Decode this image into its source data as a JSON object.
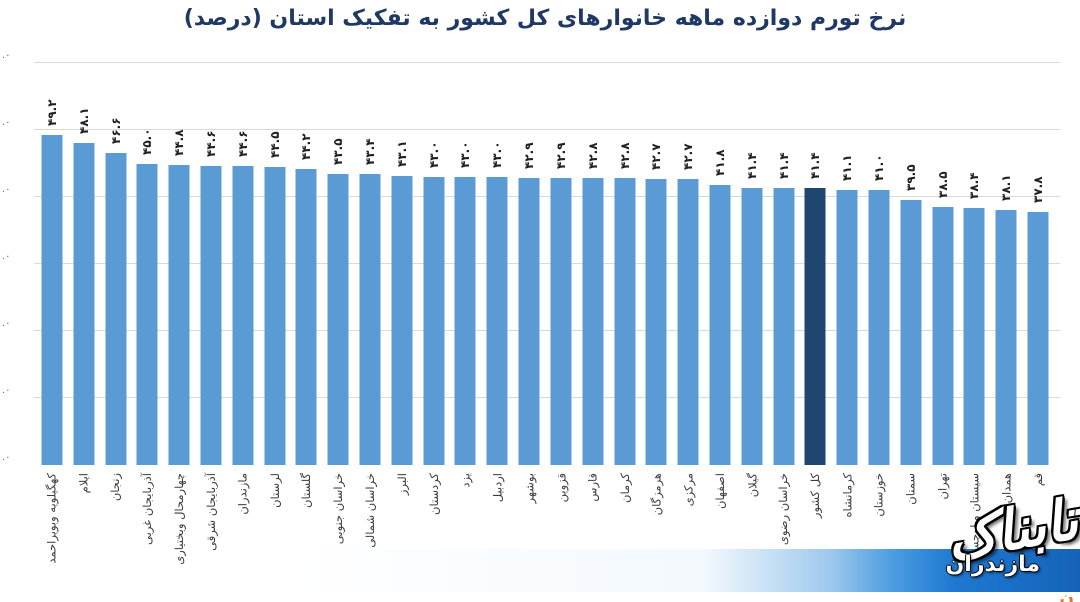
{
  "colors": {
    "background": "#FFFFFF",
    "title": "#1F3864",
    "gridline": "#D9D9D9",
    "value_label": "#1F1F1F",
    "category_label": "#3D3D3D",
    "bar_default": "#5B9BD5",
    "bar_highlight": "#1F4571",
    "watermark_band_blue": "#1E79D2",
    "watermark_band_dark_blue": "#1563B8",
    "watermark_text": "#FFFFFF",
    "corner_fragment": "#E0762B"
  },
  "y_axis": {
    "tick_fragments": [
      ".۰",
      ".۰",
      ".۰",
      ".۰",
      ".۰",
      ".۰",
      ".۰"
    ]
  },
  "watermark": {
    "brand": "تابناک",
    "region": "مازندران",
    "corner_fragment": "ن"
  },
  "chart_data": {
    "type": "bar",
    "title": "نرخ تورم دوازده ماهه خانوارهای کل کشور به تفکیک استان (درصد)",
    "xlabel": "",
    "ylabel": "",
    "ylim": [
      0,
      60
    ],
    "tick_step": 10,
    "grid": true,
    "legend_position": "none",
    "bar_colors": {
      "default": "#5B9BD5",
      "highlight": "#1F4571"
    },
    "highlighted_category": "کل کشور",
    "highlighted_index": 24,
    "categories": [
      "کهگیلویه وبویراحمد",
      "ایلام",
      "زنجان",
      "آذربایجان غربی",
      "چهارمحال وبختیاری",
      "آذربایجان شرقی",
      "مازندران",
      "لرستان",
      "گلستان",
      "خراسان جنوبی",
      "خراسان شمالی",
      "البرز",
      "کردستان",
      "یزد",
      "اردبیل",
      "بوشهر",
      "قزوین",
      "فارس",
      "کرمان",
      "هرمزگان",
      "مرکزی",
      "اصفهان",
      "گیلان",
      "خراسان رضوی",
      "کل کشور",
      "کرمانشاه",
      "خوزستان",
      "سمنان",
      "تهران",
      "سیستان وبلوچستان",
      "همدان",
      "قم"
    ],
    "values": [
      49.2,
      48.1,
      46.6,
      45.0,
      44.8,
      44.6,
      44.6,
      44.5,
      44.2,
      43.5,
      43.4,
      43.1,
      43.0,
      43.0,
      43.0,
      42.9,
      42.9,
      42.8,
      42.8,
      42.7,
      42.7,
      41.8,
      41.4,
      41.4,
      41.4,
      41.1,
      41.0,
      39.5,
      38.5,
      38.4,
      38.1,
      37.8
    ],
    "value_labels": [
      "۴۹.۲",
      "۴۸.۱",
      "۴۶.۶",
      "۴۵.۰",
      "۴۴.۸",
      "۴۴.۶",
      "۴۴.۶",
      "۴۴.۵",
      "۴۴.۲",
      "۴۳.۵",
      "۴۳.۴",
      "۴۳.۱",
      "۴۳.۰",
      "۴۳.۰",
      "۴۳.۰",
      "۴۲.۹",
      "۴۲.۹",
      "۴۲.۸",
      "۴۲.۸",
      "۴۲.۷",
      "۴۲.۷",
      "۴۱.۸",
      "۴۱.۴",
      "۴۱.۴",
      "۴۱.۴",
      "۴۱.۱",
      "۴۱.۰",
      "۳۹.۵",
      "۳۸.۵",
      "۳۸.۴",
      "۳۸.۱",
      "۳۷.۸"
    ]
  }
}
